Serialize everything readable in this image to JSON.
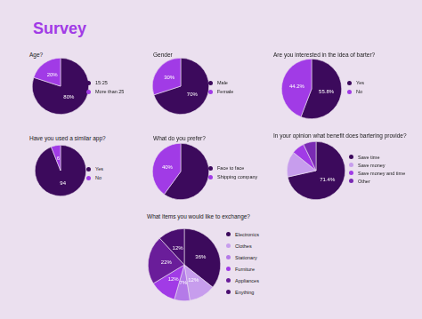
{
  "title": "Survey",
  "chart_data": [
    {
      "type": "pie",
      "title": "Age?",
      "categories": [
        "15:25",
        "More than 25"
      ],
      "values": [
        80,
        20
      ],
      "colors": [
        "#3c0a5c",
        "#a13be6"
      ],
      "value_labels": [
        "80%",
        "20%"
      ],
      "data_labels": true,
      "legend": "right"
    },
    {
      "type": "pie",
      "title": "Gender",
      "categories": [
        "Male",
        "Female"
      ],
      "values": [
        70,
        30
      ],
      "colors": [
        "#3c0a5c",
        "#a13be6"
      ],
      "value_labels": [
        "70%",
        "30%"
      ],
      "data_labels": true,
      "legend": "right"
    },
    {
      "type": "pie",
      "title": "Are you interested in the idea of barter?",
      "categories": [
        "Yes",
        "No"
      ],
      "values": [
        55.8,
        44.2
      ],
      "colors": [
        "#3c0a5c",
        "#a13be6"
      ],
      "value_labels": [
        "55.8%",
        "44.2%"
      ],
      "data_labels": true,
      "legend": "right"
    },
    {
      "type": "pie",
      "title": "Have you used a similar app?",
      "categories": [
        "Yes",
        "No"
      ],
      "values": [
        94,
        6
      ],
      "colors": [
        "#3c0a5c",
        "#a13be6"
      ],
      "value_labels": [
        "94",
        "6"
      ],
      "data_labels": true,
      "legend": "right"
    },
    {
      "type": "pie",
      "title": "What do you prefer?",
      "categories": [
        "Face to face",
        "Shipping company"
      ],
      "values": [
        60,
        40
      ],
      "colors": [
        "#3c0a5c",
        "#a13be6"
      ],
      "value_labels": [
        null,
        "40%"
      ],
      "data_labels": true,
      "legend": "right"
    },
    {
      "type": "pie",
      "title": "In your opinion what benefit does bartering provide?",
      "categories": [
        "Save time",
        "Save money",
        "Save money and time",
        "Other"
      ],
      "values": [
        71.4,
        14.3,
        7.1,
        7.1
      ],
      "colors": [
        "#3c0a5c",
        "#c79ded",
        "#a13be6",
        "#7a2bb3"
      ],
      "value_labels": [
        "71.4%",
        null,
        null,
        null
      ],
      "data_labels": true,
      "legend": "right"
    },
    {
      "type": "pie",
      "title": "What items you would like to exchange?",
      "categories": [
        "Electronics",
        "Clothes",
        "Stationary",
        "Furniture",
        "Appliances",
        "Enything"
      ],
      "values": [
        36,
        12,
        7,
        12,
        22,
        12
      ],
      "colors": [
        "#3c0a5c",
        "#c79ded",
        "#b47ae8",
        "#a13be6",
        "#6a1d9a",
        "#4a0e70"
      ],
      "value_labels": [
        "36%",
        "12%",
        "7%",
        "12%",
        "22%",
        "12%"
      ],
      "data_labels": true,
      "legend": "right"
    }
  ]
}
